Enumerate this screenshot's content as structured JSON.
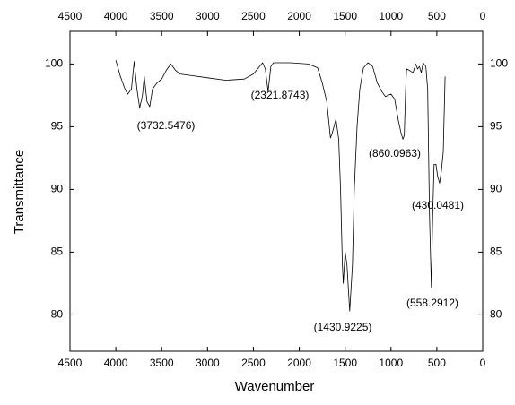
{
  "chart_data": {
    "type": "line",
    "xlabel": "Wavenumber",
    "ylabel": "Transmittance",
    "x": [
      4000,
      3950,
      3900,
      3870,
      3830,
      3800,
      3770,
      3740,
      3710,
      3690,
      3660,
      3630,
      3600,
      3550,
      3500,
      3450,
      3400,
      3350,
      3300,
      3200,
      3000,
      2800,
      2600,
      2500,
      2400,
      2370,
      2340,
      2310,
      2280,
      2100,
      1900,
      1800,
      1750,
      1700,
      1660,
      1640,
      1600,
      1570,
      1550,
      1530,
      1520,
      1500,
      1480,
      1450,
      1420,
      1400,
      1370,
      1340,
      1300,
      1250,
      1200,
      1150,
      1100,
      1060,
      1000,
      960,
      920,
      890,
      870,
      855,
      840,
      830,
      800,
      760,
      730,
      710,
      690,
      670,
      650,
      620,
      600,
      580,
      560,
      545,
      530,
      510,
      490,
      470,
      450,
      430,
      410
    ],
    "values": [
      100.3,
      99.0,
      98.0,
      97.6,
      98.0,
      100.2,
      98.0,
      96.5,
      97.5,
      99.0,
      97.0,
      96.6,
      98.0,
      98.5,
      98.8,
      99.5,
      100.0,
      99.5,
      99.2,
      99.1,
      98.9,
      98.7,
      98.8,
      99.2,
      100.1,
      99.6,
      97.8,
      99.8,
      100.1,
      100.1,
      100.0,
      99.7,
      98.5,
      97.0,
      94.1,
      94.5,
      95.6,
      94.0,
      90.0,
      84.0,
      82.5,
      85.0,
      84.0,
      80.3,
      84.0,
      90.0,
      95.0,
      98.0,
      99.7,
      100.1,
      99.8,
      98.5,
      97.8,
      97.4,
      97.6,
      97.2,
      95.5,
      94.5,
      94.0,
      94.3,
      98.0,
      99.6,
      99.5,
      99.3,
      100.0,
      99.6,
      99.8,
      99.3,
      100.1,
      99.8,
      98.0,
      88.0,
      82.2,
      88.0,
      92.0,
      92.0,
      91.0,
      90.5,
      91.5,
      93.0,
      99.0
    ],
    "color": "#000000",
    "xlim": [
      4500,
      0
    ],
    "xticks": [
      4500,
      4000,
      3500,
      3000,
      2500,
      2000,
      1500,
      1000,
      500,
      0
    ],
    "ylim": [
      77.1,
      102.6
    ],
    "yticks": [
      80,
      85,
      90,
      95,
      100
    ],
    "grid": false,
    "annotations": [
      "(3732.5476)",
      "(2321.8743)",
      "(860.0963)",
      "(430.0481)",
      "(558.2912)",
      "(1430.9225)"
    ]
  }
}
